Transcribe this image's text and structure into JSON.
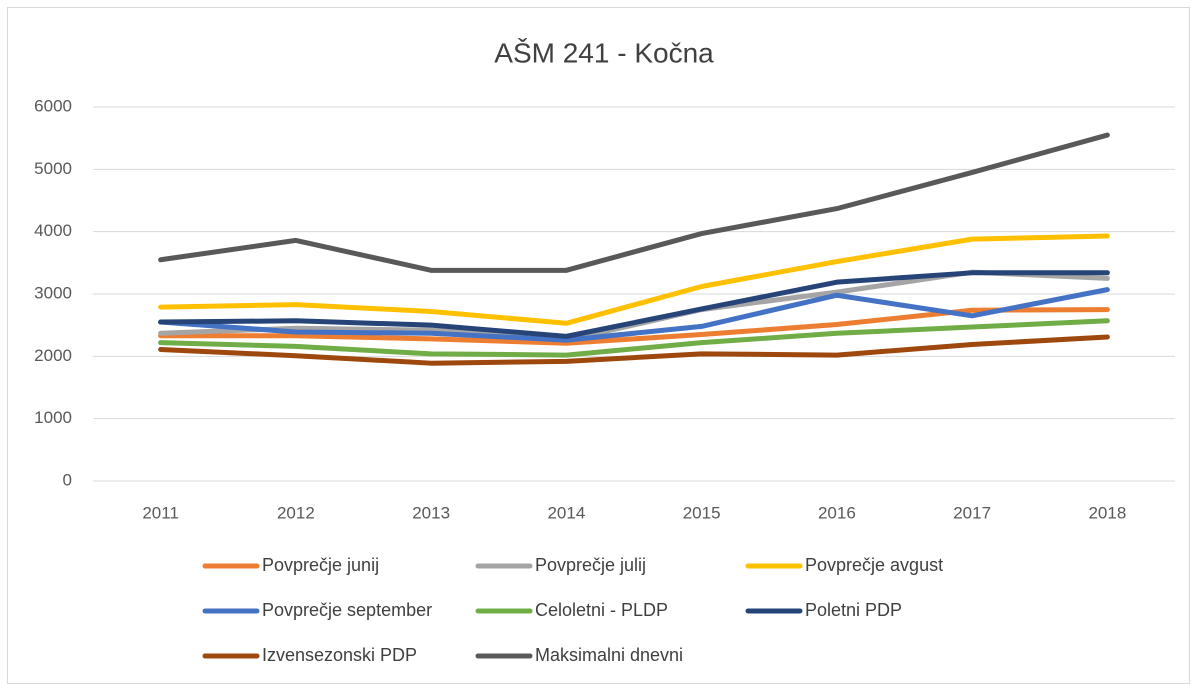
{
  "chart_data": {
    "type": "line",
    "title": "AŠM 241 - Kočna",
    "categories": [
      "2011",
      "2012",
      "2013",
      "2014",
      "2015",
      "2016",
      "2017",
      "2018"
    ],
    "series": [
      {
        "name": "Povprečje junij",
        "color": "#ed7d31",
        "values": [
          2330,
          2330,
          2280,
          2210,
          2350,
          2510,
          2740,
          2750
        ]
      },
      {
        "name": "Povprečje julij",
        "color": "#a5a5a5",
        "values": [
          2370,
          2450,
          2420,
          2260,
          2750,
          3030,
          3350,
          3250
        ]
      },
      {
        "name": "Povprečje avgust",
        "color": "#ffc000",
        "values": [
          2790,
          2830,
          2720,
          2530,
          3120,
          3520,
          3880,
          3930
        ]
      },
      {
        "name": "Povprečje september",
        "color": "#4472c4",
        "values": [
          2550,
          2390,
          2370,
          2260,
          2480,
          2980,
          2650,
          3070
        ]
      },
      {
        "name": "Celoletni - PLDP",
        "color": "#70ad47",
        "values": [
          2220,
          2160,
          2040,
          2020,
          2220,
          2370,
          2470,
          2570
        ]
      },
      {
        "name": "Poletni PDP",
        "color": "#264478",
        "values": [
          2550,
          2570,
          2500,
          2320,
          2760,
          3190,
          3340,
          3340
        ]
      },
      {
        "name": "Izvensezonski PDP",
        "color": "#9e480e",
        "values": [
          2110,
          2010,
          1890,
          1920,
          2040,
          2020,
          2190,
          2310
        ]
      },
      {
        "name": "Maksimalni dnevni",
        "color": "#595959",
        "values": [
          3550,
          3860,
          3380,
          3380,
          3970,
          4370,
          4950,
          5550
        ]
      }
    ],
    "ylim": [
      0,
      6000
    ],
    "yticks": [
      0,
      1000,
      2000,
      3000,
      4000,
      5000,
      6000
    ],
    "grid": true,
    "legend": "bottom"
  }
}
